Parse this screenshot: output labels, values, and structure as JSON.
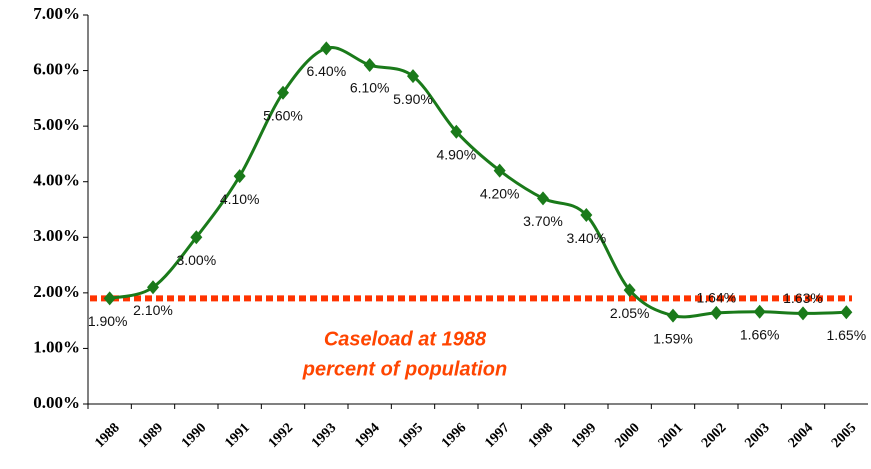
{
  "chart_data": {
    "type": "line",
    "categories": [
      "1988",
      "1989",
      "1990",
      "1991",
      "1992",
      "1993",
      "1994",
      "1995",
      "1996",
      "1997",
      "1998",
      "1999",
      "2000",
      "2001",
      "2002",
      "2003",
      "2004",
      "2005"
    ],
    "series": [
      {
        "color": "#1a7a1a",
        "values": [
          1.9,
          2.1,
          3.0,
          4.1,
          5.6,
          6.4,
          6.1,
          5.9,
          4.9,
          4.2,
          3.7,
          3.4,
          2.05,
          1.59,
          1.64,
          1.66,
          1.63,
          1.65
        ],
        "value_labels": [
          "1.90%",
          "2.10%",
          "3.00%",
          "4.10%",
          "5.60%",
          "6.40%",
          "6.10%",
          "5.90%",
          "4.90%",
          "4.20%",
          "3.70%",
          "3.40%",
          "2.05%",
          "1.59%",
          "1.64%",
          "1.66%",
          "1.63%",
          "1.65%"
        ]
      }
    ],
    "ylim": [
      0,
      7
    ],
    "yticks": [
      {
        "value": 0,
        "label": "0.00%"
      },
      {
        "value": 1,
        "label": "1.00%"
      },
      {
        "value": 2,
        "label": "2.00%"
      },
      {
        "value": 3,
        "label": "3.00%"
      },
      {
        "value": 4,
        "label": "4.00%"
      },
      {
        "value": 5,
        "label": "5.00%"
      },
      {
        "value": 6,
        "label": "6.00%"
      },
      {
        "value": 7,
        "label": "7.00%"
      }
    ],
    "reference": {
      "value": 1.9,
      "color": "#ff3300"
    },
    "annotation": [
      "Caseload at 1988",
      "percent of population"
    ]
  }
}
